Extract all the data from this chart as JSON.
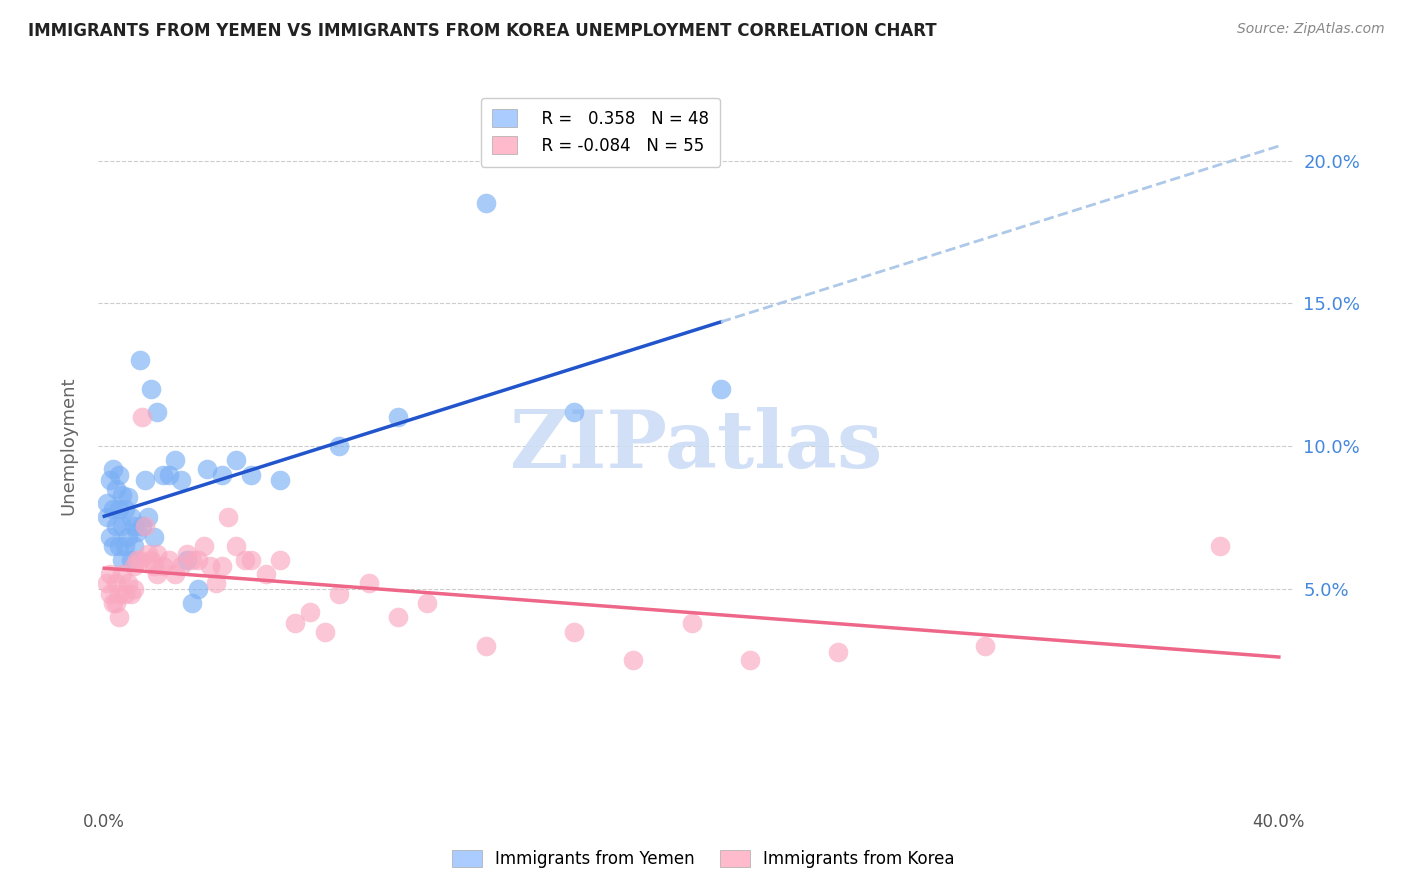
{
  "title": "IMMIGRANTS FROM YEMEN VS IMMIGRANTS FROM KOREA UNEMPLOYMENT CORRELATION CHART",
  "source": "Source: ZipAtlas.com",
  "ylabel": "Unemployment",
  "y_ticks": [
    0.05,
    0.1,
    0.15,
    0.2
  ],
  "y_tick_labels": [
    "5.0%",
    "10.0%",
    "15.0%",
    "20.0%"
  ],
  "x_lim": [
    -0.002,
    0.405
  ],
  "y_lim": [
    -0.025,
    0.225
  ],
  "yemen_R": "0.358",
  "yemen_N": "48",
  "korea_R": "-0.084",
  "korea_N": "55",
  "yemen_color": "#7aaff5",
  "korea_color": "#f9a8c0",
  "trend_yemen_solid_color": "#2255cc",
  "trend_korea_color": "#ee6688",
  "trend_dashed_color": "#adc8e8",
  "watermark": "ZIPatlas",
  "watermark_color": "#ccddf5",
  "legend_color_yemen": "#aaccff",
  "legend_color_korea": "#ffbbcc",
  "yemen_x": [
    0.001,
    0.001,
    0.002,
    0.002,
    0.003,
    0.003,
    0.003,
    0.004,
    0.004,
    0.005,
    0.005,
    0.005,
    0.006,
    0.006,
    0.006,
    0.007,
    0.007,
    0.008,
    0.008,
    0.009,
    0.009,
    0.01,
    0.01,
    0.011,
    0.012,
    0.013,
    0.014,
    0.015,
    0.016,
    0.017,
    0.018,
    0.02,
    0.022,
    0.024,
    0.026,
    0.028,
    0.03,
    0.032,
    0.035,
    0.04,
    0.045,
    0.05,
    0.06,
    0.08,
    0.1,
    0.13,
    0.16,
    0.21
  ],
  "yemen_y": [
    0.08,
    0.075,
    0.088,
    0.068,
    0.092,
    0.078,
    0.065,
    0.085,
    0.072,
    0.09,
    0.078,
    0.065,
    0.083,
    0.072,
    0.06,
    0.078,
    0.065,
    0.082,
    0.068,
    0.075,
    0.06,
    0.072,
    0.065,
    0.07,
    0.13,
    0.072,
    0.088,
    0.075,
    0.12,
    0.068,
    0.112,
    0.09,
    0.09,
    0.095,
    0.088,
    0.06,
    0.045,
    0.05,
    0.092,
    0.09,
    0.095,
    0.09,
    0.088,
    0.1,
    0.11,
    0.185,
    0.112,
    0.12
  ],
  "korea_x": [
    0.001,
    0.002,
    0.002,
    0.003,
    0.004,
    0.004,
    0.005,
    0.005,
    0.006,
    0.007,
    0.008,
    0.009,
    0.01,
    0.01,
    0.011,
    0.012,
    0.013,
    0.014,
    0.015,
    0.016,
    0.017,
    0.018,
    0.018,
    0.02,
    0.022,
    0.024,
    0.026,
    0.028,
    0.03,
    0.032,
    0.034,
    0.036,
    0.038,
    0.04,
    0.042,
    0.045,
    0.048,
    0.05,
    0.055,
    0.06,
    0.065,
    0.07,
    0.075,
    0.08,
    0.09,
    0.1,
    0.11,
    0.13,
    0.16,
    0.18,
    0.2,
    0.22,
    0.25,
    0.3,
    0.38
  ],
  "korea_y": [
    0.052,
    0.055,
    0.048,
    0.045,
    0.052,
    0.045,
    0.048,
    0.04,
    0.055,
    0.048,
    0.052,
    0.048,
    0.058,
    0.05,
    0.06,
    0.06,
    0.11,
    0.072,
    0.062,
    0.06,
    0.058,
    0.062,
    0.055,
    0.058,
    0.06,
    0.055,
    0.058,
    0.062,
    0.06,
    0.06,
    0.065,
    0.058,
    0.052,
    0.058,
    0.075,
    0.065,
    0.06,
    0.06,
    0.055,
    0.06,
    0.038,
    0.042,
    0.035,
    0.048,
    0.052,
    0.04,
    0.045,
    0.03,
    0.035,
    0.025,
    0.038,
    0.025,
    0.028,
    0.03,
    0.065
  ],
  "trend_solid_end_x": 0.21,
  "trend_dashed_start_x": 0.21,
  "trend_end_x": 0.4
}
